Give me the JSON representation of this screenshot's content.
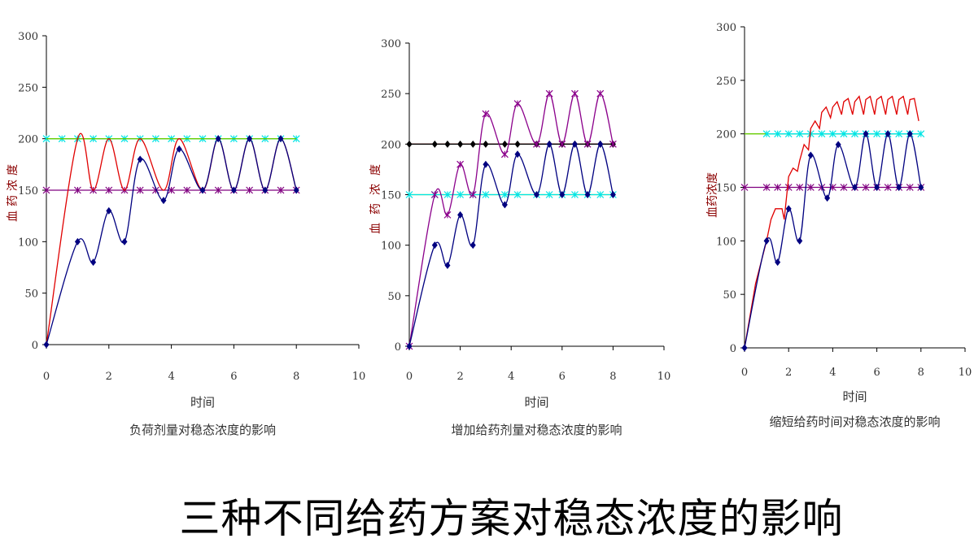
{
  "main_title": "三种不同给药方案对稳态浓度的影响",
  "chart_data": [
    {
      "type": "line",
      "title": "负荷剂量对稳态浓度的影响",
      "xlabel": "时间",
      "ylabel": "血药浓度",
      "xlim": [
        0,
        10
      ],
      "ylim": [
        0,
        300
      ],
      "xticks": [
        0,
        2,
        4,
        6,
        8,
        10
      ],
      "yticks": [
        0,
        50,
        100,
        150,
        200,
        250,
        300
      ],
      "series": [
        {
          "color": "#00e5e5",
          "marker": "star",
          "smooth": false,
          "points": [
            [
              0,
              200
            ],
            [
              0.5,
              200
            ],
            [
              1,
              200
            ],
            [
              1.5,
              200
            ],
            [
              2,
              200
            ],
            [
              2.5,
              200
            ],
            [
              3,
              200
            ],
            [
              3.5,
              200
            ],
            [
              4,
              200
            ],
            [
              4.5,
              200
            ],
            [
              5,
              200
            ],
            [
              5.5,
              200
            ],
            [
              6,
              200
            ],
            [
              6.5,
              200
            ],
            [
              7,
              200
            ],
            [
              7.5,
              200
            ],
            [
              8,
              200
            ]
          ]
        },
        {
          "color": "#66cc00",
          "marker": "none",
          "smooth": false,
          "points": [
            [
              0,
              200
            ],
            [
              8,
              200
            ]
          ]
        },
        {
          "color": "#800080",
          "marker": "star",
          "smooth": false,
          "points": [
            [
              0,
              150
            ],
            [
              1,
              150
            ],
            [
              1.5,
              150
            ],
            [
              2,
              150
            ],
            [
              2.5,
              150
            ],
            [
              3,
              150
            ],
            [
              3.5,
              150
            ],
            [
              4,
              150
            ],
            [
              4.5,
              150
            ],
            [
              5,
              150
            ],
            [
              5.5,
              150
            ],
            [
              6,
              150
            ],
            [
              6.5,
              150
            ],
            [
              7,
              150
            ],
            [
              7.5,
              150
            ],
            [
              8,
              150
            ]
          ]
        },
        {
          "color": "#e00000",
          "marker": "none",
          "smooth": true,
          "points": [
            [
              0,
              0
            ],
            [
              1,
              200
            ],
            [
              1.5,
              150
            ],
            [
              2,
              200
            ],
            [
              2.5,
              150
            ],
            [
              3,
              200
            ],
            [
              3.75,
              150
            ],
            [
              4.25,
              200
            ],
            [
              5,
              150
            ],
            [
              5.5,
              200
            ],
            [
              6,
              150
            ],
            [
              6.5,
              200
            ],
            [
              7,
              150
            ],
            [
              7.5,
              200
            ],
            [
              8,
              150
            ]
          ]
        },
        {
          "color": "#000080",
          "marker": "diamond",
          "smooth": true,
          "points": [
            [
              0,
              0
            ],
            [
              1,
              100
            ],
            [
              1.5,
              80
            ],
            [
              2,
              130
            ],
            [
              2.5,
              100
            ],
            [
              3,
              180
            ],
            [
              3.75,
              140
            ],
            [
              4.25,
              190
            ],
            [
              5,
              150
            ],
            [
              5.5,
              200
            ],
            [
              6,
              150
            ],
            [
              6.5,
              200
            ],
            [
              7,
              150
            ],
            [
              7.5,
              200
            ],
            [
              8,
              150
            ]
          ]
        }
      ]
    },
    {
      "type": "line",
      "title": "增加给药剂量对稳态浓度的影响",
      "xlabel": "时间",
      "ylabel": "血药浓度",
      "xlim": [
        0,
        10
      ],
      "ylim": [
        0,
        300
      ],
      "xticks": [
        0,
        2,
        4,
        6,
        8,
        10
      ],
      "yticks": [
        0,
        50,
        100,
        150,
        200,
        250,
        300
      ],
      "series": [
        {
          "color": "#e00000",
          "marker": "none",
          "smooth": false,
          "points": [
            [
              0,
              200
            ],
            [
              8,
              200
            ]
          ]
        },
        {
          "color": "#000000",
          "marker": "diamond",
          "smooth": false,
          "points": [
            [
              0,
              200
            ],
            [
              1,
              200
            ],
            [
              1.5,
              200
            ],
            [
              2,
              200
            ],
            [
              2.5,
              200
            ],
            [
              3,
              200
            ],
            [
              3.75,
              200
            ],
            [
              4.25,
              200
            ],
            [
              5,
              200
            ],
            [
              5.5,
              200
            ],
            [
              6,
              200
            ],
            [
              6.5,
              200
            ],
            [
              7,
              200
            ],
            [
              7.5,
              200
            ],
            [
              8,
              200
            ]
          ]
        },
        {
          "color": "#66cc00",
          "marker": "none",
          "smooth": false,
          "points": [
            [
              0,
              150
            ],
            [
              8,
              150
            ]
          ]
        },
        {
          "color": "#00e5e5",
          "marker": "star",
          "smooth": false,
          "points": [
            [
              0,
              150
            ],
            [
              1,
              150
            ],
            [
              1.5,
              150
            ],
            [
              2,
              150
            ],
            [
              2.5,
              150
            ],
            [
              3,
              150
            ],
            [
              3.75,
              150
            ],
            [
              4.25,
              150
            ],
            [
              5,
              150
            ],
            [
              5.5,
              150
            ],
            [
              6,
              150
            ],
            [
              6.5,
              150
            ],
            [
              7,
              150
            ],
            [
              7.5,
              150
            ],
            [
              8,
              150
            ]
          ]
        },
        {
          "color": "#8b008b",
          "marker": "star",
          "smooth": true,
          "points": [
            [
              0,
              0
            ],
            [
              1,
              150
            ],
            [
              1.5,
              130
            ],
            [
              2,
              180
            ],
            [
              2.5,
              150
            ],
            [
              3,
              230
            ],
            [
              3.75,
              190
            ],
            [
              4.25,
              240
            ],
            [
              5,
              200
            ],
            [
              5.5,
              250
            ],
            [
              6,
              200
            ],
            [
              6.5,
              250
            ],
            [
              7,
              200
            ],
            [
              7.5,
              250
            ],
            [
              8,
              200
            ]
          ]
        },
        {
          "color": "#000080",
          "marker": "diamond",
          "smooth": true,
          "points": [
            [
              0,
              0
            ],
            [
              1,
              100
            ],
            [
              1.5,
              80
            ],
            [
              2,
              130
            ],
            [
              2.5,
              100
            ],
            [
              3,
              180
            ],
            [
              3.75,
              140
            ],
            [
              4.25,
              190
            ],
            [
              5,
              150
            ],
            [
              5.5,
              200
            ],
            [
              6,
              150
            ],
            [
              6.5,
              200
            ],
            [
              7,
              150
            ],
            [
              7.5,
              200
            ],
            [
              8,
              150
            ]
          ]
        }
      ]
    },
    {
      "type": "line",
      "title": "缩短给药时间对稳态浓度的影响",
      "xlabel": "时间",
      "ylabel": "血药浓度",
      "xlim": [
        0,
        10
      ],
      "ylim": [
        0,
        300
      ],
      "xticks": [
        0,
        2,
        4,
        6,
        8,
        10
      ],
      "yticks": [
        0,
        50,
        100,
        150,
        200,
        250,
        300
      ],
      "series": [
        {
          "color": "#66cc00",
          "marker": "none",
          "smooth": false,
          "points": [
            [
              0,
              200
            ],
            [
              8,
              200
            ]
          ]
        },
        {
          "color": "#00e5e5",
          "marker": "star",
          "smooth": false,
          "points": [
            [
              1,
              200
            ],
            [
              1.5,
              200
            ],
            [
              2,
              200
            ],
            [
              2.5,
              200
            ],
            [
              3,
              200
            ],
            [
              3.5,
              200
            ],
            [
              4,
              200
            ],
            [
              4.5,
              200
            ],
            [
              5,
              200
            ],
            [
              5.5,
              200
            ],
            [
              6,
              200
            ],
            [
              6.5,
              200
            ],
            [
              7,
              200
            ],
            [
              7.5,
              200
            ],
            [
              8,
              200
            ]
          ]
        },
        {
          "color": "#800080",
          "marker": "star",
          "smooth": false,
          "points": [
            [
              0,
              150
            ],
            [
              1,
              150
            ],
            [
              1.5,
              150
            ],
            [
              2,
              150
            ],
            [
              2.5,
              150
            ],
            [
              3,
              150
            ],
            [
              3.5,
              150
            ],
            [
              4,
              150
            ],
            [
              4.5,
              150
            ],
            [
              5,
              150
            ],
            [
              5.5,
              150
            ],
            [
              6,
              150
            ],
            [
              6.5,
              150
            ],
            [
              7,
              150
            ],
            [
              7.5,
              150
            ],
            [
              8,
              150
            ]
          ]
        },
        {
          "color": "#e00000",
          "marker": "none",
          "smooth": false,
          "points": [
            [
              0,
              0
            ],
            [
              0.5,
              60
            ],
            [
              1,
              100
            ],
            [
              1.2,
              120
            ],
            [
              1.4,
              130
            ],
            [
              1.7,
              130
            ],
            [
              1.8,
              120
            ],
            [
              2,
              160
            ],
            [
              2.2,
              168
            ],
            [
              2.4,
              165
            ],
            [
              2.5,
              175
            ],
            [
              2.7,
              190
            ],
            [
              2.9,
              185
            ],
            [
              3,
              205
            ],
            [
              3.2,
              212
            ],
            [
              3.4,
              205
            ],
            [
              3.5,
              220
            ],
            [
              3.7,
              225
            ],
            [
              3.9,
              215
            ],
            [
              4,
              225
            ],
            [
              4.2,
              230
            ],
            [
              4.4,
              218
            ],
            [
              4.5,
              230
            ],
            [
              4.7,
              233
            ],
            [
              4.9,
              218
            ],
            [
              5,
              230
            ],
            [
              5.2,
              235
            ],
            [
              5.4,
              218
            ],
            [
              5.5,
              232
            ],
            [
              5.7,
              235
            ],
            [
              5.9,
              218
            ],
            [
              6,
              232
            ],
            [
              6.2,
              235
            ],
            [
              6.4,
              218
            ],
            [
              6.5,
              232
            ],
            [
              6.7,
              235
            ],
            [
              6.9,
              218
            ],
            [
              7,
              232
            ],
            [
              7.2,
              235
            ],
            [
              7.4,
              218
            ],
            [
              7.5,
              232
            ],
            [
              7.7,
              233
            ],
            [
              7.9,
              212
            ]
          ]
        },
        {
          "color": "#000080",
          "marker": "diamond",
          "smooth": true,
          "points": [
            [
              0,
              0
            ],
            [
              1,
              100
            ],
            [
              1.5,
              80
            ],
            [
              2,
              130
            ],
            [
              2.5,
              100
            ],
            [
              3,
              180
            ],
            [
              3.75,
              140
            ],
            [
              4.25,
              190
            ],
            [
              5,
              150
            ],
            [
              5.5,
              200
            ],
            [
              6,
              150
            ],
            [
              6.5,
              200
            ],
            [
              7,
              150
            ],
            [
              7.5,
              200
            ],
            [
              8,
              150
            ]
          ]
        }
      ]
    }
  ]
}
